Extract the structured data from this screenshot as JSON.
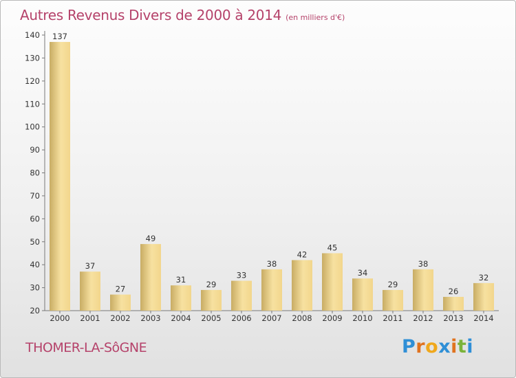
{
  "title": "Autres Revenus Divers de 2000 à 2014",
  "title_unit": "(en milliers d'€)",
  "location": "THOMER-LA-SôGNE",
  "logo": {
    "text": "Proxiti",
    "letters": [
      {
        "ch": "P",
        "color": "#2f8fd6"
      },
      {
        "ch": "r",
        "color": "#e0731f"
      },
      {
        "ch": "o",
        "color": "#f0a81c"
      },
      {
        "ch": "x",
        "color": "#2f8fd6"
      },
      {
        "ch": "i",
        "color": "#e0731f"
      },
      {
        "ch": "t",
        "color": "#7bb33a"
      },
      {
        "ch": "i",
        "color": "#2f8fd6"
      }
    ]
  },
  "colors": {
    "title": "#b5426a",
    "bar_light": "#f7e1a0",
    "bar_dark": "#c8ac64"
  },
  "chart_data": {
    "type": "bar",
    "title": "Autres Revenus Divers de 2000 à 2014",
    "subtitle": "(en milliers d'€)",
    "xlabel": "",
    "ylabel": "",
    "categories": [
      "2000",
      "2001",
      "2002",
      "2003",
      "2004",
      "2005",
      "2006",
      "2007",
      "2008",
      "2009",
      "2010",
      "2011",
      "2012",
      "2013",
      "2014"
    ],
    "values": [
      137,
      37,
      27,
      49,
      31,
      29,
      33,
      38,
      42,
      45,
      34,
      29,
      38,
      26,
      32
    ],
    "ylim": [
      20,
      140
    ],
    "yticks": [
      20,
      30,
      40,
      50,
      60,
      70,
      80,
      90,
      100,
      110,
      120,
      130,
      140
    ],
    "grid": false,
    "legend": "none",
    "data_labels": true
  }
}
